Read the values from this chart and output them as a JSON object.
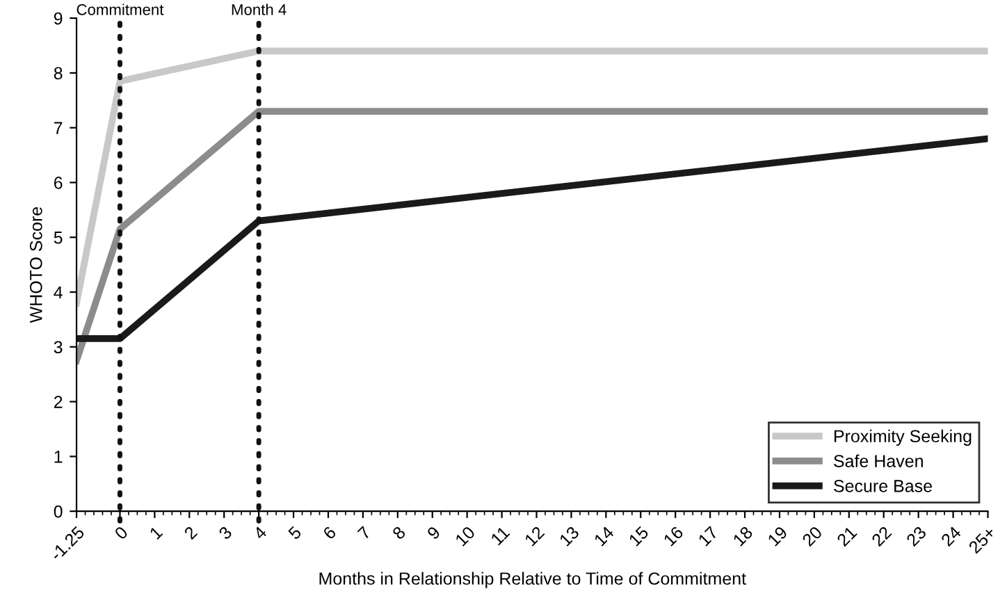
{
  "chart_data": {
    "type": "line",
    "xlabel": "Months in Relationship Relative to Time of Commitment",
    "ylabel": "WHOTO Score",
    "x": [
      -1.25,
      0,
      4,
      25
    ],
    "series": [
      {
        "name": "Proximity Seeking",
        "color": "#c8c8c8",
        "values": [
          3.8,
          7.85,
          8.4,
          8.4
        ]
      },
      {
        "name": "Safe Haven",
        "color": "#8c8c8c",
        "values": [
          2.75,
          5.15,
          7.3,
          7.3
        ]
      },
      {
        "name": "Secure Base",
        "color": "#1a1a1a",
        "values": [
          3.15,
          3.15,
          5.3,
          6.8
        ]
      }
    ],
    "xlim": [
      -1.25,
      25
    ],
    "ylim": [
      0,
      9
    ],
    "xticks": [
      -1.25,
      0,
      1,
      2,
      3,
      4,
      5,
      6,
      7,
      8,
      9,
      10,
      11,
      12,
      13,
      14,
      15,
      16,
      17,
      18,
      19,
      20,
      21,
      22,
      23,
      24,
      {
        "value": 25,
        "label": "25+"
      }
    ],
    "yticks": [
      0,
      1,
      2,
      3,
      4,
      5,
      6,
      7,
      8,
      9
    ],
    "ref_lines": [
      {
        "axis": "x",
        "value": 0,
        "label": "Commitment",
        "color": "#111111",
        "line_style": "dotted"
      },
      {
        "axis": "x",
        "value": 4,
        "label": "Month 4",
        "color": "#111111",
        "line_style": "dotted"
      }
    ],
    "grid": false,
    "legend": "bottom right",
    "marker": "none",
    "line_style": "solid"
  }
}
